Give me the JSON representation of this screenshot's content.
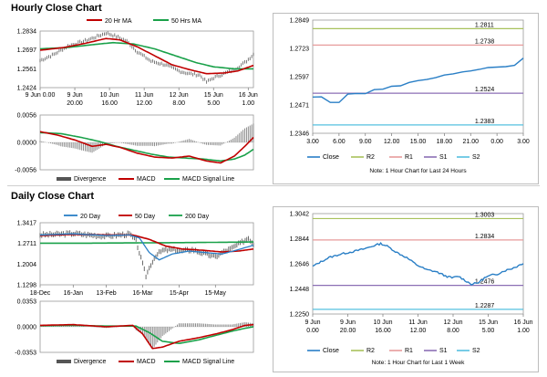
{
  "sections": {
    "hourly_title": "Hourly Close Chart",
    "daily_title": "Daily Close Chart"
  },
  "colors": {
    "price": "#5a5a5a",
    "ma_red": "#c00000",
    "ma_green": "#1aa14a",
    "close": "#2a7fc6",
    "r2": "#a8c25c",
    "r1": "#e79b9b",
    "s1": "#8c6fb5",
    "s2": "#55c0df",
    "divergence": "#808080"
  },
  "chart_data": [
    {
      "type": "line",
      "title": "Hourly Close Chart - Price",
      "legend": [
        "20 Hr MA",
        "50 Hrs MA"
      ],
      "x_ticks": [
        {
          "label": "9 Jun 0.00",
          "idx": 0
        },
        {
          "label": "9 Jun|20.00",
          "idx": 20
        },
        {
          "label": "10 Jun|16.00",
          "idx": 40
        },
        {
          "label": "11 Jun|12.00",
          "idx": 60
        },
        {
          "label": "12 Jun|8.00",
          "idx": 80
        },
        {
          "label": "15 Jun|5.00",
          "idx": 100
        },
        {
          "label": "16 Jun|1.00",
          "idx": 120
        }
      ],
      "y_ticks": [
        1.2424,
        1.2561,
        1.2697,
        1.2834
      ],
      "ylim": [
        1.2424,
        1.2834
      ],
      "n": 124,
      "price_keys": [
        [
          0,
          1.262
        ],
        [
          8,
          1.2665
        ],
        [
          16,
          1.2725
        ],
        [
          24,
          1.2755
        ],
        [
          32,
          1.279
        ],
        [
          38,
          1.282
        ],
        [
          44,
          1.2795
        ],
        [
          50,
          1.276
        ],
        [
          56,
          1.2685
        ],
        [
          64,
          1.2615
        ],
        [
          72,
          1.259
        ],
        [
          80,
          1.2545
        ],
        [
          86,
          1.2525
        ],
        [
          92,
          1.2515
        ],
        [
          96,
          1.2465
        ],
        [
          100,
          1.2495
        ],
        [
          106,
          1.2525
        ],
        [
          112,
          1.2555
        ],
        [
          118,
          1.2605
        ],
        [
          123,
          1.2665
        ]
      ],
      "ma20_keys": [
        [
          0,
          1.2695
        ],
        [
          14,
          1.2715
        ],
        [
          26,
          1.2745
        ],
        [
          38,
          1.278
        ],
        [
          46,
          1.277
        ],
        [
          56,
          1.272
        ],
        [
          66,
          1.2655
        ],
        [
          76,
          1.259
        ],
        [
          86,
          1.2555
        ],
        [
          96,
          1.2525
        ],
        [
          106,
          1.253
        ],
        [
          114,
          1.2545
        ],
        [
          123,
          1.2585
        ]
      ],
      "ma50_keys": [
        [
          0,
          1.2705
        ],
        [
          16,
          1.2715
        ],
        [
          30,
          1.2735
        ],
        [
          42,
          1.275
        ],
        [
          54,
          1.274
        ],
        [
          66,
          1.2705
        ],
        [
          78,
          1.2655
        ],
        [
          90,
          1.2605
        ],
        [
          100,
          1.2575
        ],
        [
          112,
          1.256
        ],
        [
          123,
          1.256
        ]
      ]
    },
    {
      "type": "bar",
      "title": "Hourly Close Chart - MACD",
      "legend": [
        "Divergence",
        "MACD",
        "MACD Signal Line"
      ],
      "y_ticks": [
        -0.0056,
        0.0,
        0.0056
      ],
      "ylim": [
        -0.0056,
        0.0056
      ],
      "n": 124,
      "macd_keys": [
        [
          0,
          0.0022
        ],
        [
          10,
          0.0015
        ],
        [
          20,
          0.0005
        ],
        [
          30,
          -0.0008
        ],
        [
          38,
          -0.0004
        ],
        [
          46,
          -0.001
        ],
        [
          56,
          -0.0022
        ],
        [
          66,
          -0.003
        ],
        [
          76,
          -0.0032
        ],
        [
          86,
          -0.0028
        ],
        [
          96,
          -0.0038
        ],
        [
          104,
          -0.0042
        ],
        [
          112,
          -0.0028
        ],
        [
          118,
          -0.0008
        ],
        [
          123,
          0.001
        ]
      ],
      "signal_keys": [
        [
          0,
          0.002
        ],
        [
          12,
          0.0018
        ],
        [
          24,
          0.001
        ],
        [
          34,
          0.0002
        ],
        [
          44,
          -0.0008
        ],
        [
          54,
          -0.0016
        ],
        [
          64,
          -0.0024
        ],
        [
          74,
          -0.003
        ],
        [
          84,
          -0.0032
        ],
        [
          94,
          -0.0034
        ],
        [
          104,
          -0.0038
        ],
        [
          112,
          -0.0034
        ],
        [
          118,
          -0.0026
        ],
        [
          123,
          -0.0014
        ]
      ]
    },
    {
      "type": "line",
      "title": "Hourly Close Chart - Last 24 Hours",
      "x_labels": [
        "3.00",
        "6.00",
        "9.00",
        "12.00",
        "15.00",
        "18.00",
        "21.00",
        "0.00",
        "3.00"
      ],
      "y_ticks": [
        1.2346,
        1.2471,
        1.2597,
        1.2723,
        1.2849
      ],
      "ylim": [
        1.2346,
        1.2849
      ],
      "close": [
        1.2507,
        1.2508,
        1.2483,
        1.2483,
        1.252,
        1.2523,
        1.2522,
        1.254,
        1.2542,
        1.2555,
        1.2557,
        1.2572,
        1.258,
        1.2585,
        1.2593,
        1.2605,
        1.261,
        1.2618,
        1.2623,
        1.263,
        1.2638,
        1.264,
        1.2642,
        1.2648,
        1.268
      ],
      "levels": [
        {
          "name": "R2",
          "value": 1.2811,
          "label": "1.2811"
        },
        {
          "name": "R1",
          "value": 1.2738,
          "label": "1.2738"
        },
        {
          "name": "S1",
          "value": 1.2524,
          "label": "1.2524"
        },
        {
          "name": "S2",
          "value": 1.2383,
          "label": "1.2383"
        }
      ],
      "legend": [
        "Close",
        "R2",
        "R1",
        "S1",
        "S2"
      ],
      "note": "Note: 1 Hour Chart for Last 24 Hours"
    },
    {
      "type": "line",
      "title": "Daily Close Chart - Price",
      "legend": [
        "20 Day",
        "50 Day",
        "200 Day"
      ],
      "x_ticks": [
        {
          "label": "18-Dec",
          "idx": 0
        },
        {
          "label": "16-Jan",
          "idx": 20
        },
        {
          "label": "13-Feb",
          "idx": 40
        },
        {
          "label": "16-Mar",
          "idx": 62
        },
        {
          "label": "15-Apr",
          "idx": 84
        },
        {
          "label": "15-May",
          "idx": 106
        }
      ],
      "y_ticks": [
        1.1298,
        1.2004,
        1.2711,
        1.3417
      ],
      "ylim": [
        1.1298,
        1.3417
      ],
      "n": 130,
      "price_keys": [
        [
          0,
          1.3
        ],
        [
          10,
          1.302
        ],
        [
          20,
          1.305
        ],
        [
          30,
          1.3
        ],
        [
          40,
          1.296
        ],
        [
          48,
          1.3
        ],
        [
          54,
          1.303
        ],
        [
          58,
          1.28
        ],
        [
          62,
          1.2
        ],
        [
          64,
          1.16
        ],
        [
          67,
          1.2
        ],
        [
          70,
          1.23
        ],
        [
          74,
          1.247
        ],
        [
          80,
          1.25
        ],
        [
          86,
          1.245
        ],
        [
          92,
          1.25
        ],
        [
          100,
          1.235
        ],
        [
          106,
          1.225
        ],
        [
          110,
          1.24
        ],
        [
          116,
          1.255
        ],
        [
          122,
          1.275
        ],
        [
          126,
          1.29
        ],
        [
          129,
          1.269
        ]
      ],
      "ma20_keys": [
        [
          0,
          1.3
        ],
        [
          20,
          1.304
        ],
        [
          40,
          1.298
        ],
        [
          54,
          1.3
        ],
        [
          60,
          1.29
        ],
        [
          66,
          1.24
        ],
        [
          72,
          1.215
        ],
        [
          80,
          1.235
        ],
        [
          90,
          1.245
        ],
        [
          100,
          1.24
        ],
        [
          110,
          1.235
        ],
        [
          120,
          1.25
        ],
        [
          129,
          1.265
        ]
      ],
      "ma50_keys": [
        [
          0,
          1.298
        ],
        [
          20,
          1.302
        ],
        [
          40,
          1.3
        ],
        [
          56,
          1.3
        ],
        [
          66,
          1.285
        ],
        [
          76,
          1.262
        ],
        [
          86,
          1.252
        ],
        [
          98,
          1.248
        ],
        [
          110,
          1.242
        ],
        [
          120,
          1.245
        ],
        [
          129,
          1.252
        ]
      ],
      "ma200_keys": [
        [
          0,
          1.272
        ],
        [
          30,
          1.272
        ],
        [
          60,
          1.273
        ],
        [
          90,
          1.274
        ],
        [
          110,
          1.275
        ],
        [
          129,
          1.276
        ]
      ]
    },
    {
      "type": "bar",
      "title": "Daily Close Chart - MACD",
      "legend": [
        "Divergence",
        "MACD",
        "MACD Signal Line"
      ],
      "y_ticks": [
        -0.0353,
        0.0,
        0.0353
      ],
      "ylim": [
        -0.0353,
        0.0353
      ],
      "n": 130,
      "macd_keys": [
        [
          0,
          0.002
        ],
        [
          20,
          0.003
        ],
        [
          40,
          0.0
        ],
        [
          56,
          0.002
        ],
        [
          62,
          -0.01
        ],
        [
          68,
          -0.03
        ],
        [
          74,
          -0.028
        ],
        [
          84,
          -0.02
        ],
        [
          96,
          -0.015
        ],
        [
          106,
          -0.01
        ],
        [
          116,
          -0.004
        ],
        [
          124,
          0.002
        ],
        [
          129,
          0.003
        ]
      ],
      "signal_keys": [
        [
          0,
          0.0015
        ],
        [
          20,
          0.002
        ],
        [
          40,
          0.001
        ],
        [
          58,
          0.001
        ],
        [
          66,
          -0.008
        ],
        [
          74,
          -0.02
        ],
        [
          84,
          -0.023
        ],
        [
          96,
          -0.018
        ],
        [
          106,
          -0.012
        ],
        [
          116,
          -0.006
        ],
        [
          124,
          -0.002
        ],
        [
          129,
          0.0
        ]
      ]
    },
    {
      "type": "line",
      "title": "Daily Close Chart - Last 1 Week",
      "x_labels": [
        "9 Jun|0.00",
        "9 Jun|20.00",
        "10 Jun|16.00",
        "11 Jun|12.00",
        "12 Jun|8.00",
        "15 Jun|5.00",
        "16 Jun|1.00"
      ],
      "y_ticks": [
        1.225,
        1.2448,
        1.2646,
        1.2844,
        1.3042
      ],
      "ylim": [
        1.225,
        1.3042
      ],
      "close_keys": [
        [
          0,
          1.2625
        ],
        [
          4,
          1.2655
        ],
        [
          10,
          1.2695
        ],
        [
          18,
          1.2725
        ],
        [
          26,
          1.2745
        ],
        [
          32,
          1.2765
        ],
        [
          38,
          1.279
        ],
        [
          42,
          1.2805
        ],
        [
          46,
          1.2785
        ],
        [
          52,
          1.2735
        ],
        [
          58,
          1.2695
        ],
        [
          64,
          1.264
        ],
        [
          70,
          1.26
        ],
        [
          76,
          1.2585
        ],
        [
          82,
          1.255
        ],
        [
          86,
          1.2535
        ],
        [
          90,
          1.2548
        ],
        [
          94,
          1.2515
        ],
        [
          98,
          1.2485
        ],
        [
          102,
          1.2495
        ],
        [
          106,
          1.2535
        ],
        [
          110,
          1.2555
        ],
        [
          114,
          1.2565
        ],
        [
          118,
          1.259
        ],
        [
          122,
          1.2605
        ],
        [
          126,
          1.2625
        ],
        [
          130,
          1.2652
        ]
      ],
      "n": 131,
      "levels": [
        {
          "name": "R2",
          "value": 1.3003,
          "label": "1.3003"
        },
        {
          "name": "R1",
          "value": 1.2834,
          "label": "1.2834"
        },
        {
          "name": "S1",
          "value": 1.2476,
          "label": "1.2476"
        },
        {
          "name": "S2",
          "value": 1.2287,
          "label": "1.2287"
        }
      ],
      "legend": [
        "Close",
        "R2",
        "R1",
        "S1",
        "S2"
      ],
      "note": "Note: 1 Hour Chart for Last 1 Week"
    }
  ]
}
